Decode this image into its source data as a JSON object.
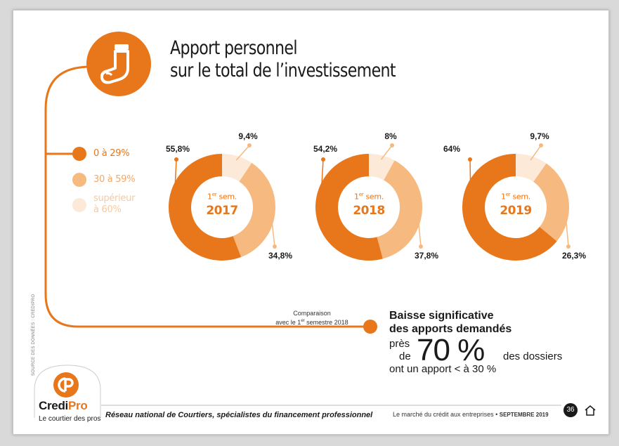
{
  "title_line1": "Apport personnel",
  "title_line2": "sur le total de l’investissement",
  "legend": [
    {
      "label": "0 à 29%",
      "color": "#e8761a"
    },
    {
      "label": "30 à 59%",
      "color": "#f6b980"
    },
    {
      "label_line1": "supérieur",
      "label_line2": "à 60%",
      "color": "#fde9d8"
    }
  ],
  "colors": {
    "accent": "#e8761a",
    "mid": "#f6b980",
    "light": "#fde9d8"
  },
  "chart_data": {
    "type": "pie",
    "categories": [
      "0 à 29%",
      "30 à 59%",
      "supérieur à 60%"
    ],
    "charts": [
      {
        "sem_prefix": "1",
        "sem_sup": "er",
        "sem_label": "sem.",
        "year": "2017",
        "values": [
          55.8,
          34.8,
          9.4
        ],
        "labels": [
          "55,8%",
          "34,8%",
          "9,4%"
        ]
      },
      {
        "sem_prefix": "1",
        "sem_sup": "er",
        "sem_label": "sem.",
        "year": "2018",
        "values": [
          54.2,
          37.8,
          8.0
        ],
        "labels": [
          "54,2%",
          "37,8%",
          "8%"
        ]
      },
      {
        "sem_prefix": "1",
        "sem_sup": "er",
        "sem_label": "sem.",
        "year": "2019",
        "values": [
          64.0,
          26.3,
          9.7
        ],
        "labels": [
          "64%",
          "26,3%",
          "9,7%"
        ]
      }
    ]
  },
  "comparison": {
    "line1": "Comparaison",
    "line2_pre": "avec le 1",
    "line2_sup": "er",
    "line2_post": " semestre 2018"
  },
  "highlight": {
    "title_line1": "Baisse significative",
    "title_line2": "des apports demandés",
    "pres": "près",
    "de": "de",
    "big_value": "70 %",
    "des_dossiers": "des dossiers",
    "last_line": "ont un apport < à 30 %"
  },
  "source": "SOURCE DES DONNÉES : CREDIPRO",
  "footer": {
    "tagline": "Réseau national de Courtiers, spécialistes du financement professionnel",
    "right_text": "Le marché du crédit aux entreprises • ",
    "right_bold": "SEPTEMBRE 2019",
    "page_number": "36"
  },
  "brand": {
    "name_dark": "Credi",
    "name_accent": "Pro",
    "subtitle": "Le courtier des pros"
  },
  "icons": {
    "title_icon": "sock-icon",
    "logo": "credipro-logo-icon",
    "home": "home-icon"
  }
}
